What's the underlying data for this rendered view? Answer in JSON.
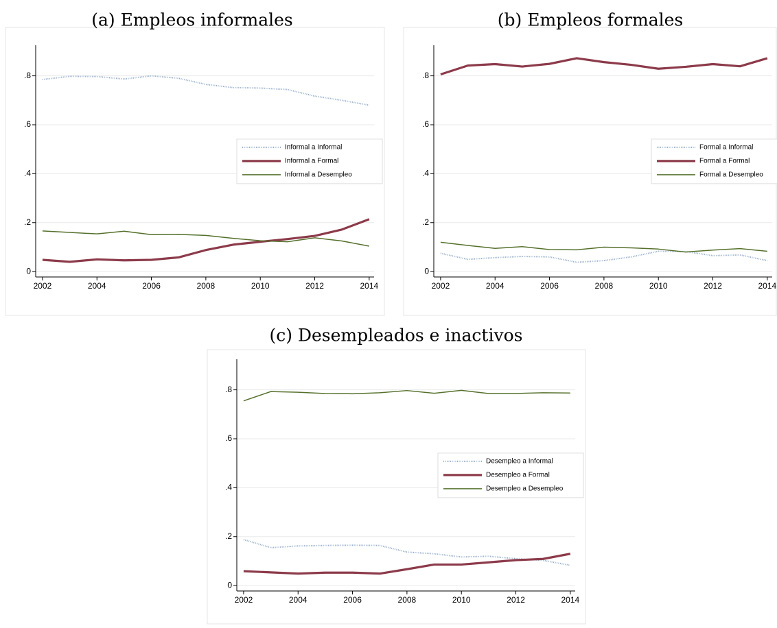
{
  "chart_data": [
    {
      "type": "line",
      "title": "(a) Empleos informales",
      "x": [
        2002,
        2003,
        2004,
        2005,
        2006,
        2007,
        2008,
        2009,
        2010,
        2011,
        2012,
        2013,
        2014
      ],
      "xlim": [
        2001.75,
        2014.18
      ],
      "xticks": [
        2002,
        2004,
        2006,
        2008,
        2010,
        2012,
        2014
      ],
      "ylim": [
        -0.022,
        0.925
      ],
      "yticks": [
        0,
        {
          "value": 0.2,
          "label": ".2"
        },
        {
          "value": 0.4,
          "label": ".4"
        },
        {
          "value": 0.6,
          "label": ".6"
        },
        {
          "value": 0.8,
          "label": ".8"
        }
      ],
      "grid": true,
      "legend": "right",
      "series": [
        {
          "name": "Informal a Informal",
          "color": "#8fa9c6",
          "style": "dotted",
          "values": [
            0.785,
            0.798,
            0.797,
            0.787,
            0.8,
            0.79,
            0.765,
            0.752,
            0.75,
            0.744,
            0.717,
            0.7,
            0.68
          ]
        },
        {
          "name": "Informal a Formal",
          "color": "#8c3a4a",
          "style": "thick",
          "values": [
            0.048,
            0.04,
            0.05,
            0.046,
            0.048,
            0.058,
            0.088,
            0.11,
            0.122,
            0.133,
            0.146,
            0.172,
            0.214
          ]
        },
        {
          "name": "Informal a Desempleo",
          "color": "#55702b",
          "style": "solid",
          "values": [
            0.166,
            0.16,
            0.154,
            0.165,
            0.151,
            0.152,
            0.148,
            0.136,
            0.126,
            0.122,
            0.138,
            0.125,
            0.104
          ]
        }
      ]
    },
    {
      "type": "line",
      "title": "(b) Empleos formales",
      "x": [
        2002,
        2003,
        2004,
        2005,
        2006,
        2007,
        2008,
        2009,
        2010,
        2011,
        2012,
        2013,
        2014
      ],
      "xlim": [
        2001.75,
        2014.18
      ],
      "xticks": [
        2002,
        2004,
        2006,
        2008,
        2010,
        2012,
        2014
      ],
      "ylim": [
        -0.022,
        0.925
      ],
      "yticks": [
        0,
        {
          "value": 0.2,
          "label": ".2"
        },
        {
          "value": 0.4,
          "label": ".4"
        },
        {
          "value": 0.6,
          "label": ".6"
        },
        {
          "value": 0.8,
          "label": ".8"
        }
      ],
      "grid": true,
      "legend": "right",
      "series": [
        {
          "name": "Formal a Informal",
          "color": "#8fa9c6",
          "style": "dotted",
          "values": [
            0.075,
            0.05,
            0.057,
            0.062,
            0.06,
            0.038,
            0.045,
            0.06,
            0.083,
            0.082,
            0.065,
            0.068,
            0.045
          ]
        },
        {
          "name": "Formal a Formal",
          "color": "#8c3a4a",
          "style": "thick",
          "values": [
            0.806,
            0.842,
            0.848,
            0.838,
            0.849,
            0.872,
            0.856,
            0.845,
            0.829,
            0.837,
            0.848,
            0.839,
            0.872
          ]
        },
        {
          "name": "Formal a Desempleo",
          "color": "#55702b",
          "style": "solid",
          "values": [
            0.12,
            0.107,
            0.095,
            0.102,
            0.09,
            0.089,
            0.1,
            0.097,
            0.092,
            0.08,
            0.088,
            0.094,
            0.083
          ]
        }
      ]
    },
    {
      "type": "line",
      "title": "(c) Desempleados e inactivos",
      "x": [
        2002,
        2003,
        2004,
        2005,
        2006,
        2007,
        2008,
        2009,
        2010,
        2011,
        2012,
        2013,
        2014
      ],
      "xlim": [
        2001.75,
        2014.18
      ],
      "xticks": [
        2002,
        2004,
        2006,
        2008,
        2010,
        2012,
        2014
      ],
      "ylim": [
        -0.022,
        0.925
      ],
      "yticks": [
        0,
        {
          "value": 0.2,
          "label": ".2"
        },
        {
          "value": 0.4,
          "label": ".4"
        },
        {
          "value": 0.6,
          "label": ".6"
        },
        {
          "value": 0.8,
          "label": ".8"
        }
      ],
      "grid": true,
      "legend": "right",
      "series": [
        {
          "name": "Desempleo a Informal",
          "color": "#8fa9c6",
          "style": "dotted",
          "values": [
            0.188,
            0.155,
            0.162,
            0.164,
            0.165,
            0.164,
            0.137,
            0.13,
            0.117,
            0.12,
            0.11,
            0.103,
            0.083
          ]
        },
        {
          "name": "Desempleo a Formal",
          "color": "#8c3a4a",
          "style": "thick",
          "values": [
            0.059,
            0.054,
            0.049,
            0.053,
            0.053,
            0.049,
            0.067,
            0.086,
            0.086,
            0.095,
            0.104,
            0.109,
            0.13
          ]
        },
        {
          "name": "Desempleo a Desempleo",
          "color": "#55702b",
          "style": "solid",
          "values": [
            0.755,
            0.793,
            0.79,
            0.785,
            0.784,
            0.788,
            0.797,
            0.786,
            0.798,
            0.785,
            0.785,
            0.788,
            0.787
          ]
        }
      ]
    }
  ]
}
